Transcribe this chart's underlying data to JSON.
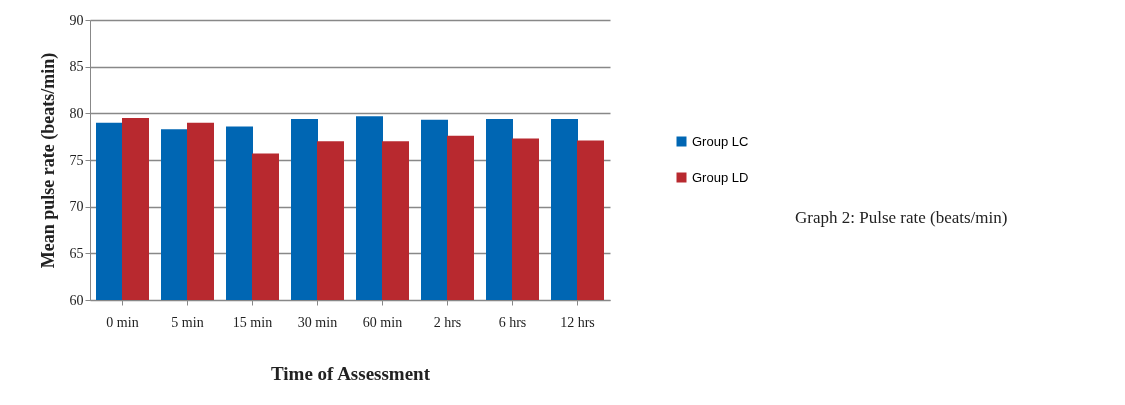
{
  "chart_data": {
    "type": "bar",
    "xlabel": "Time of Assessment",
    "ylabel": "Mean pulse rate (beats/min)",
    "categories": [
      "0 min",
      "5 min",
      "15 min",
      "30 min",
      "60 min",
      "2 hrs",
      "6 hrs",
      "12 hrs"
    ],
    "series": [
      {
        "name": "Group LC",
        "color": "#0066b3",
        "values": [
          79.0,
          78.3,
          78.6,
          79.4,
          79.7,
          79.3,
          79.4,
          79.4
        ]
      },
      {
        "name": "Group LD",
        "color": "#b8292f",
        "values": [
          79.5,
          79.0,
          75.7,
          77.0,
          77.0,
          77.6,
          77.3,
          77.1
        ]
      }
    ],
    "ylim": [
      60,
      90
    ],
    "yticks": [
      60,
      65,
      70,
      75,
      80,
      85,
      90
    ],
    "grid": "y",
    "legend": "right",
    "annotations": [
      "Graph 2: Pulse rate (beats/min)"
    ]
  }
}
